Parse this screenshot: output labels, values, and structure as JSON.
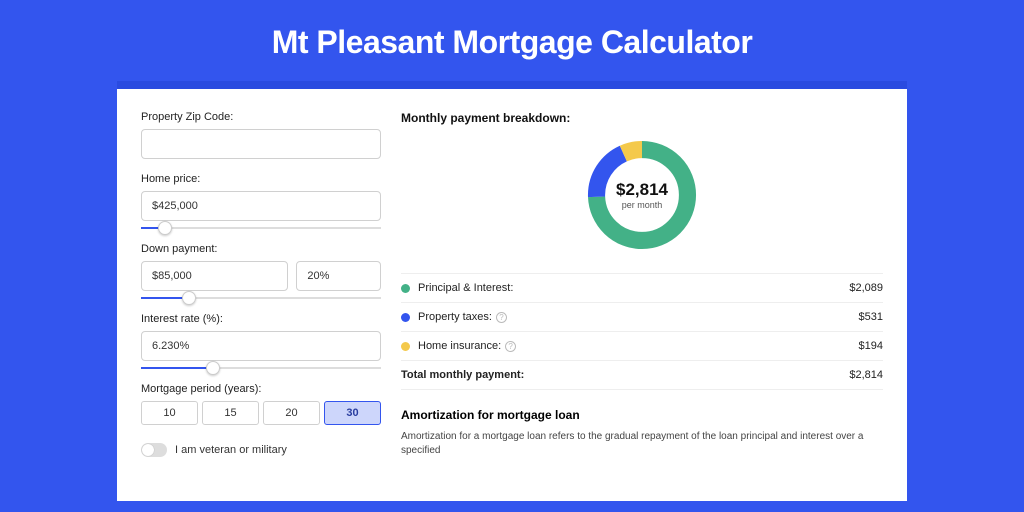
{
  "page": {
    "title": "Mt Pleasant Mortgage Calculator",
    "background_color": "#3355ee",
    "accent_bar_color": "#2a4be0"
  },
  "form": {
    "zip": {
      "label": "Property Zip Code:",
      "value": ""
    },
    "home_price": {
      "label": "Home price:",
      "value": "$425,000",
      "slider_pct": 10
    },
    "down_payment": {
      "label": "Down payment:",
      "amount": "$85,000",
      "percent": "20%",
      "slider_pct": 20
    },
    "interest_rate": {
      "label": "Interest rate (%):",
      "value": "6.230%",
      "slider_pct": 30
    },
    "period": {
      "label": "Mortgage period (years):",
      "options": [
        "10",
        "15",
        "20",
        "30"
      ],
      "selected": "30"
    },
    "veteran": {
      "label": "I am veteran or military",
      "on": false
    }
  },
  "breakdown": {
    "title": "Monthly payment breakdown:",
    "donut": {
      "amount": "$2,814",
      "sub": "per month",
      "slices": [
        {
          "key": "principal_interest",
          "value": 2089,
          "color": "#43b187"
        },
        {
          "key": "property_taxes",
          "value": 531,
          "color": "#3355ee"
        },
        {
          "key": "home_insurance",
          "value": 194,
          "color": "#f4c94b"
        }
      ],
      "ring_width": 16,
      "background_color": "#ffffff"
    },
    "rows": [
      {
        "label": "Principal & Interest:",
        "value": "$2,089",
        "color": "#43b187",
        "help": false
      },
      {
        "label": "Property taxes:",
        "value": "$531",
        "color": "#3355ee",
        "help": true
      },
      {
        "label": "Home insurance:",
        "value": "$194",
        "color": "#f4c94b",
        "help": true
      }
    ],
    "total": {
      "label": "Total monthly payment:",
      "value": "$2,814"
    }
  },
  "amortization": {
    "title": "Amortization for mortgage loan",
    "text": "Amortization for a mortgage loan refers to the gradual repayment of the loan principal and interest over a specified"
  }
}
